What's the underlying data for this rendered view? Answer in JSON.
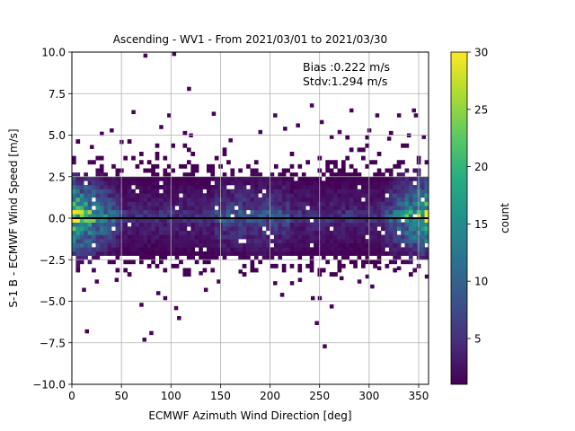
{
  "chart_data": {
    "type": "heatmap",
    "title": "Ascending - WV1 - From 2021/03/01 to 2021/03/30",
    "xlabel": "ECMWF Azimuth Wind Direction [deg]",
    "ylabel": "S-1 B - ECMWF Wind Speed [m/s]",
    "xlim": [
      0,
      360
    ],
    "ylim": [
      -10,
      10
    ],
    "x_ticks": [
      "0",
      "50",
      "100",
      "150",
      "200",
      "250",
      "300",
      "350"
    ],
    "y_ticks": [
      "10.0",
      "7.5",
      "5.0",
      "2.5",
      "0.0",
      "−2.5",
      "−5.0",
      "−7.5",
      "−10.0"
    ],
    "grid": true,
    "colormap": "viridis",
    "colorbar": {
      "label": "count",
      "range": [
        1,
        30
      ],
      "ticks": [
        "5",
        "10",
        "15",
        "20",
        "25",
        "30"
      ]
    },
    "annotations": [
      "Bias :0.222 m/s",
      "Stdv:1.294 m/s"
    ],
    "zero_line": 0,
    "outlier_points": [
      [
        74,
        9.8
      ],
      [
        103,
        9.9
      ],
      [
        98,
        6.2
      ],
      [
        118,
        7.8
      ],
      [
        62,
        6.4
      ],
      [
        143,
        6.3
      ],
      [
        205,
        6.2
      ],
      [
        242,
        6.8
      ],
      [
        282,
        6.5
      ],
      [
        308,
        6.2
      ],
      [
        330,
        6.2
      ],
      [
        345,
        6.5
      ],
      [
        347,
        6.2
      ],
      [
        20,
        4.3
      ],
      [
        30,
        5.1
      ],
      [
        40,
        5.3
      ],
      [
        50,
        4.6
      ],
      [
        90,
        5.5
      ],
      [
        120,
        5.0
      ],
      [
        160,
        4.7
      ],
      [
        190,
        5.2
      ],
      [
        215,
        5.4
      ],
      [
        228,
        5.6
      ],
      [
        252,
        5.8
      ],
      [
        262,
        4.9
      ],
      [
        270,
        5.2
      ],
      [
        300,
        5.3
      ],
      [
        320,
        4.8
      ],
      [
        340,
        5.0
      ],
      [
        355,
        4.9
      ],
      [
        12,
        -4.3
      ],
      [
        15,
        -6.8
      ],
      [
        25,
        -3.8
      ],
      [
        45,
        -3.7
      ],
      [
        70,
        -5.2
      ],
      [
        73,
        -7.3
      ],
      [
        80,
        -6.9
      ],
      [
        87,
        -4.5
      ],
      [
        94,
        -4.8
      ],
      [
        105,
        -5.4
      ],
      [
        108,
        -6.0
      ],
      [
        130,
        -3.3
      ],
      [
        135,
        -4.3
      ],
      [
        148,
        -3.8
      ],
      [
        170,
        -3.2
      ],
      [
        205,
        -3.9
      ],
      [
        212,
        -4.6
      ],
      [
        222,
        -3.9
      ],
      [
        230,
        -3.7
      ],
      [
        243,
        -4.8
      ],
      [
        247,
        -6.3
      ],
      [
        250,
        -4.8
      ],
      [
        255,
        -7.7
      ],
      [
        262,
        -5.3
      ],
      [
        272,
        -3.6
      ],
      [
        290,
        -3.8
      ],
      [
        298,
        -3.5
      ],
      [
        303,
        -4.1
      ],
      [
        310,
        -3.0
      ],
      [
        330,
        -3.0
      ],
      [
        358,
        -3.5
      ]
    ]
  }
}
